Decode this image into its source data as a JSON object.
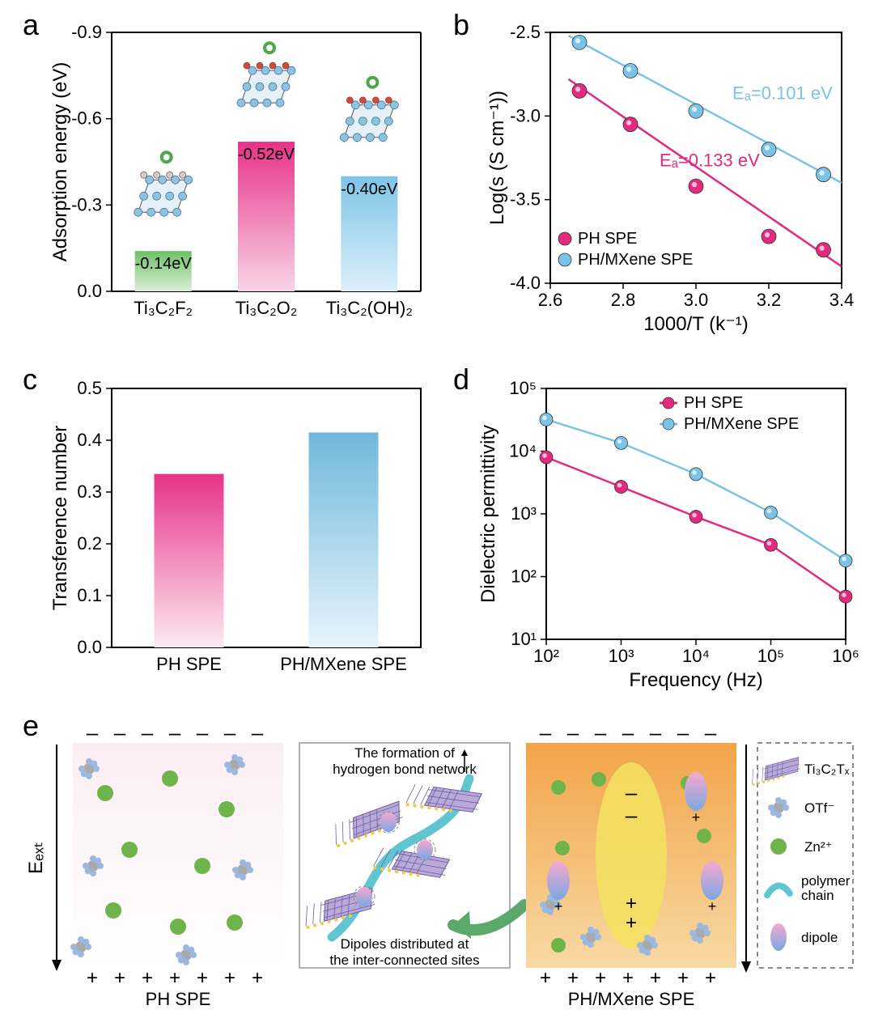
{
  "panel_a": {
    "label": "a",
    "type": "bar",
    "ylabel": "Adsorption energy (eV)",
    "yticks": [
      0.0,
      -0.3,
      -0.6,
      -0.9
    ],
    "ytick_labels": [
      "0.0",
      "-0.3",
      "-0.6",
      "-0.9"
    ],
    "categories": [
      "Ti₃C₂F₂",
      "Ti₃C₂O₂",
      "Ti₃C₂(OH)₂"
    ],
    "values": [
      -0.14,
      -0.52,
      -0.4
    ],
    "value_labels": [
      "-0.14eV",
      "-0.52eV",
      "-0.40eV"
    ],
    "bar_colors_top": [
      "#6fc067",
      "#e73289",
      "#7fc4e8"
    ],
    "bar_colors_bottom": [
      "#d9efd6",
      "#f9d5e6",
      "#dcf0fa"
    ],
    "axis_color": "#000000",
    "label_fontsize": 24,
    "tick_fontsize": 22,
    "bar_width": 0.55
  },
  "panel_b": {
    "label": "b",
    "type": "scatter+line",
    "xlabel": "1000/T (k⁻¹)",
    "ylabel": "Log(s (S cm⁻¹))",
    "xlim": [
      2.6,
      3.4
    ],
    "xtick_step": 0.2,
    "xticks": [
      2.6,
      2.8,
      3.0,
      3.2,
      3.4
    ],
    "ylim": [
      -4.0,
      -2.5
    ],
    "ytick_step": 0.5,
    "yticks": [
      -4.0,
      -3.5,
      -3.0,
      -2.5
    ],
    "series": [
      {
        "name": "PH SPE",
        "color": "#e22a7f",
        "marker": "circle",
        "marker_size": 9,
        "line_width": 2.5,
        "points_x": [
          2.68,
          2.82,
          3.0,
          3.2,
          3.35
        ],
        "points_y": [
          -2.85,
          -3.05,
          -3.42,
          -3.72,
          -3.8
        ],
        "fit_x": [
          2.65,
          3.4
        ],
        "fit_y": [
          -2.78,
          -3.9
        ],
        "annotation": "Eₐ=0.133 eV"
      },
      {
        "name": "PH/MXene SPE",
        "color": "#7bc3e6",
        "marker": "circle",
        "marker_size": 9,
        "line_width": 2.5,
        "points_x": [
          2.68,
          2.82,
          3.0,
          3.2,
          3.35
        ],
        "points_y": [
          -2.56,
          -2.73,
          -2.97,
          -3.2,
          -3.35
        ],
        "fit_x": [
          2.65,
          3.4
        ],
        "fit_y": [
          -2.52,
          -3.4
        ],
        "annotation": "Eₐ=0.101 eV"
      }
    ],
    "legend_position": "bottom-left"
  },
  "panel_c": {
    "label": "c",
    "type": "bar",
    "ylabel": "Transference number",
    "yticks": [
      0.0,
      0.1,
      0.2,
      0.3,
      0.4,
      0.5
    ],
    "ytick_labels": [
      "0.0",
      "0.1",
      "0.2",
      "0.3",
      "0.4",
      "0.5"
    ],
    "categories": [
      "PH SPE",
      "PH/MXene SPE"
    ],
    "values": [
      0.335,
      0.415
    ],
    "bar_colors_top": [
      "#e73289",
      "#6fb8db"
    ],
    "bar_colors_bottom": [
      "#fdeaf2",
      "#e8f4fb"
    ],
    "bar_width": 0.45
  },
  "panel_d": {
    "label": "d",
    "type": "line",
    "xlabel": "Frequency (Hz)",
    "ylabel": "Dielectric permittivity",
    "xscale": "log",
    "yscale": "log",
    "xlim": [
      100,
      1000000
    ],
    "xticks": [
      100,
      1000,
      10000,
      100000,
      1000000
    ],
    "xtick_labels": [
      "10²",
      "10³",
      "10⁴",
      "10⁵",
      "10⁶"
    ],
    "ylim": [
      10,
      100000
    ],
    "yticks": [
      10,
      100,
      1000,
      10000,
      100000
    ],
    "ytick_labels": [
      "10¹",
      "10²",
      "10³",
      "10⁴",
      "10⁵"
    ],
    "series": [
      {
        "name": "PH SPE",
        "color": "#e22a7f",
        "marker": "circle",
        "marker_size": 8,
        "line_width": 2.5,
        "points_x": [
          100,
          1000,
          10000,
          100000,
          1000000
        ],
        "points_y": [
          8000,
          2700,
          900,
          320,
          48
        ]
      },
      {
        "name": "PH/MXene SPE",
        "color": "#7bc3e6",
        "marker": "circle",
        "marker_size": 8,
        "line_width": 2.5,
        "points_x": [
          100,
          1000,
          10000,
          100000,
          1000000
        ],
        "points_y": [
          32000,
          13500,
          4300,
          1050,
          180
        ]
      }
    ],
    "legend_position": "top-right"
  },
  "panel_e": {
    "label": "e",
    "type": "schematic",
    "left_title": "PH SPE",
    "center_top": "The formation of\nhydrogen bond network",
    "center_bottom": "Dipoles distributed at\nthe inter-connected sites",
    "right_title": "PH/MXene SPE",
    "eext_label": "Eₑₓₜ",
    "legend_items": [
      {
        "label": "Ti₃C₂Tₓ",
        "kind": "mxene"
      },
      {
        "label": "OTf⁻",
        "kind": "otf"
      },
      {
        "label": "Zn²⁺",
        "kind": "zn"
      },
      {
        "label": "polymer\nchain",
        "kind": "polymer"
      },
      {
        "label": "dipole",
        "kind": "dipole"
      }
    ],
    "colors": {
      "left_bg_top": "#fbeef3",
      "left_bg_bottom": "#ffffff",
      "right_bg_top": "#f2a448",
      "right_bg_bottom": "#f8d9a4",
      "center_bg": "#ffffff",
      "zn": "#6fb34b",
      "otf_center": "#a9a9a9",
      "otf_outer": "#9bb9e0",
      "polymer": "#5fc5d1",
      "dipole_top": "#f7a8cf",
      "dipole_bottom": "#7aa8e0",
      "mxene_fill": "#b8a9d6",
      "mxene_grid": "#6e5ea8",
      "arrow_green": "#5aa96b",
      "big_dipole_fill": "#f4e062"
    }
  },
  "global": {
    "bg": "#ffffff",
    "font": "Arial",
    "panel_label_fontsize": 36
  }
}
